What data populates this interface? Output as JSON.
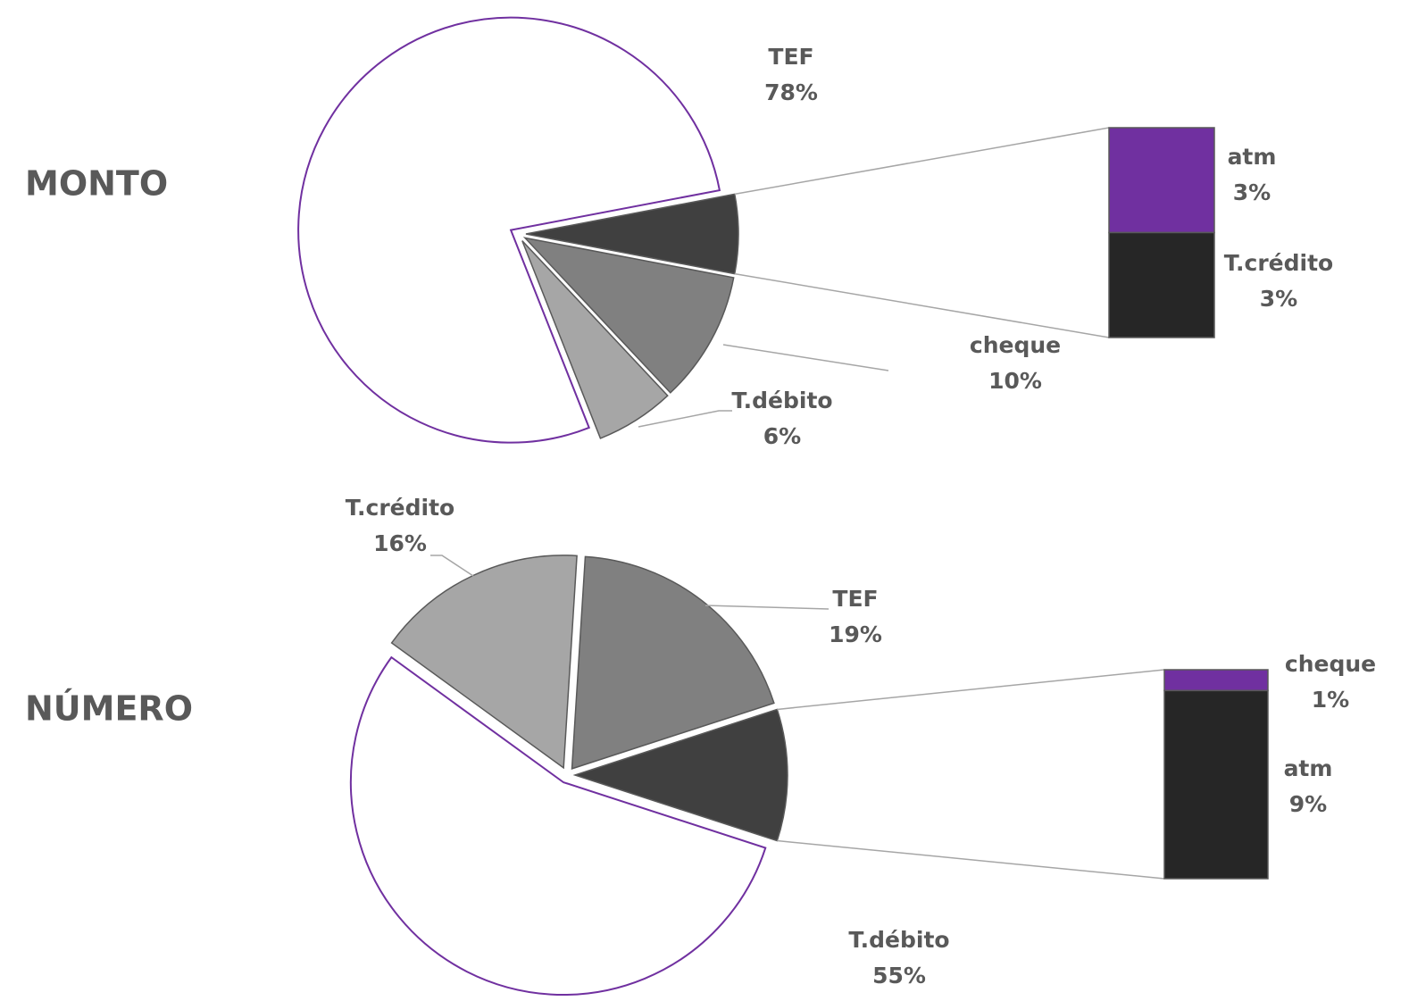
{
  "chart_data": [
    {
      "type": "pie",
      "title": "MONTO",
      "categories": [
        "cheque",
        "T.débito",
        "TEF",
        "atm",
        "T.crédito"
      ],
      "values": [
        10,
        6,
        78,
        3,
        3
      ],
      "value_labels": [
        "10%",
        "6%",
        "78%",
        "3%",
        "3%"
      ],
      "colors": [
        "#808080",
        "#a6a6a6",
        "#ffffff",
        "#7030a0",
        "#262626"
      ],
      "secondary": 2
    },
    {
      "type": "pie",
      "title": "NÚMERO",
      "categories": [
        "T.débito",
        "T.crédito",
        "TEF",
        "cheque",
        "atm"
      ],
      "values": [
        55,
        16,
        19,
        1,
        9
      ],
      "value_labels": [
        "55%",
        "16%",
        "19%",
        "1%",
        "9%"
      ],
      "colors": [
        "#ffffff",
        "#a6a6a6",
        "#808080",
        "#7030a0",
        "#262626"
      ],
      "secondary": 2
    }
  ]
}
